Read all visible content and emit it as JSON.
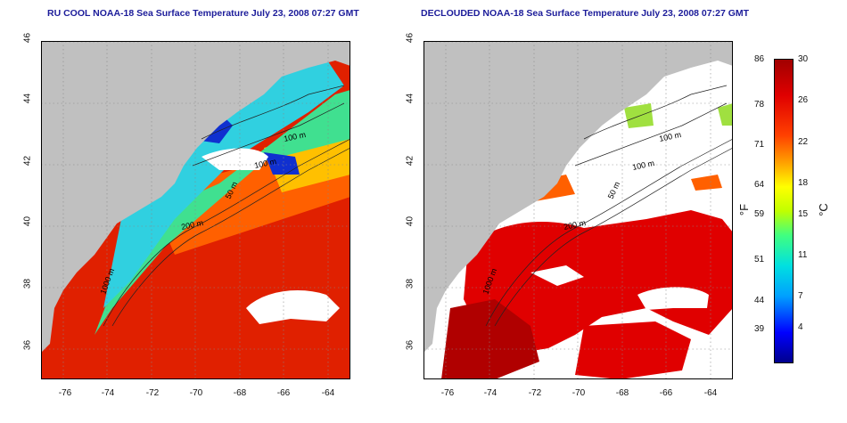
{
  "panels": {
    "left": {
      "title": "RU COOL NOAA-18 Sea Surface Temperature July 23, 2008 07:27 GMT"
    },
    "right": {
      "title": "DECLOUDED NOAA-18 Sea Surface Temperature July 23, 2008 07:27 GMT"
    }
  },
  "axes": {
    "lat_ticks": [
      "36",
      "38",
      "40",
      "42",
      "44",
      "46"
    ],
    "lon_ticks": [
      "-76",
      "-74",
      "-72",
      "-70",
      "-68",
      "-66",
      "-64"
    ],
    "lat_range": [
      35,
      46
    ],
    "lon_range": [
      -77,
      -63
    ]
  },
  "contours": {
    "left": [
      "100 m",
      "100 m",
      "50 m",
      "200 m",
      "1000 m"
    ],
    "right": [
      "100 m",
      "100 m",
      "50 m",
      "200 m",
      "1000 m"
    ]
  },
  "colorbar": {
    "f_ticks": [
      "86",
      "78",
      "71",
      "64",
      "59",
      "51",
      "44",
      "39"
    ],
    "c_ticks": [
      "30",
      "26",
      "22",
      "18",
      "15",
      "11",
      "7",
      "4"
    ],
    "f_unit": "°F",
    "c_unit": "°C",
    "colors": [
      "#00008b",
      "#0000ff",
      "#00a0ff",
      "#00e0e0",
      "#40ff80",
      "#c0ff00",
      "#ffff00",
      "#ffa000",
      "#ff4000",
      "#e00000",
      "#a00000"
    ]
  },
  "colors": {
    "land": "#c0c0c0",
    "cloud": "#ffffff",
    "title": "#1c1c9a"
  }
}
